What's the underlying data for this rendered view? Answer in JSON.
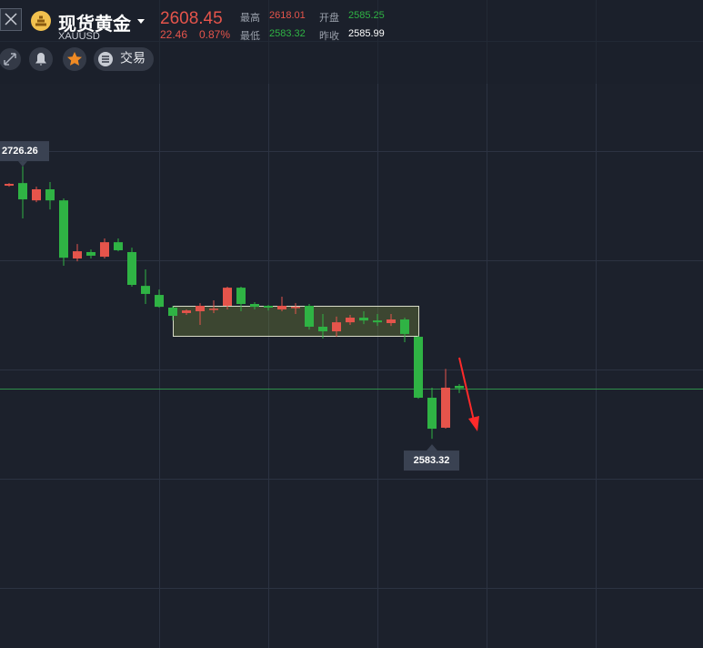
{
  "header": {
    "title": "现货黄金",
    "symbol": "XAUUSD",
    "price": "2608.45",
    "change": "22.46",
    "change_pct": "0.87%",
    "stats": [
      {
        "label": "最高",
        "value": "2618.01"
      },
      {
        "label": "开盘",
        "value": "2585.25"
      },
      {
        "label": "最低",
        "value": "2583.32"
      },
      {
        "label": "昨收",
        "value": "2585.99"
      }
    ]
  },
  "toolbar": {
    "trade": "交易"
  },
  "chart_data": {
    "type": "candlestick",
    "up_color": "#e5544b",
    "down_color": "#2fb344",
    "ylim": [
      2479.3,
      2801.4
    ],
    "ohlc": [
      [
        2709.1,
        2710.4,
        2708.6,
        2710.0
      ],
      [
        2710.4,
        2726.26,
        2692.8,
        2702.3
      ],
      [
        2701.8,
        2708.6,
        2700.9,
        2707.3
      ],
      [
        2707.3,
        2710.9,
        2697.3,
        2701.8
      ],
      [
        2701.8,
        2702.8,
        2669.3,
        2673.3
      ],
      [
        2672.9,
        2680.1,
        2671.5,
        2676.5
      ],
      [
        2676.1,
        2677.4,
        2672.9,
        2674.3
      ],
      [
        2673.8,
        2682.9,
        2672.9,
        2681.0
      ],
      [
        2681.0,
        2682.9,
        2676.5,
        2677.0
      ],
      [
        2676.1,
        2678.3,
        2658.9,
        2659.8
      ],
      [
        2659.3,
        2667.5,
        2650.3,
        2655.3
      ],
      [
        2654.8,
        2657.5,
        2648.5,
        2648.9
      ],
      [
        2648.5,
        2649.4,
        2642.1,
        2644.4
      ],
      [
        2645.8,
        2647.6,
        2644.9,
        2647.1
      ],
      [
        2646.7,
        2650.7,
        2639.9,
        2649.4
      ],
      [
        2647.6,
        2652.1,
        2645.8,
        2648.0
      ],
      [
        2649.4,
        2658.9,
        2647.6,
        2658.4
      ],
      [
        2658.4,
        2658.9,
        2646.7,
        2650.3
      ],
      [
        2650.3,
        2651.2,
        2647.6,
        2648.9
      ],
      [
        2649.4,
        2649.8,
        2647.1,
        2648.5
      ],
      [
        2647.6,
        2653.9,
        2646.7,
        2649.4
      ],
      [
        2648.5,
        2650.7,
        2645.3,
        2648.9
      ],
      [
        2649.4,
        2650.3,
        2637.6,
        2639.0
      ],
      [
        2639.0,
        2645.3,
        2633.1,
        2636.7
      ],
      [
        2636.7,
        2644.0,
        2634.0,
        2641.2
      ],
      [
        2641.2,
        2644.9,
        2639.9,
        2643.5
      ],
      [
        2643.5,
        2646.7,
        2640.3,
        2642.1
      ],
      [
        2642.1,
        2645.3,
        2639.4,
        2641.2
      ],
      [
        2640.8,
        2645.3,
        2639.4,
        2642.6
      ],
      [
        2642.6,
        2643.5,
        2631.3,
        2635.4
      ],
      [
        2634.0,
        2634.5,
        2603.2,
        2603.7
      ],
      [
        2603.7,
        2608.7,
        2583.32,
        2588.3
      ],
      [
        2588.8,
        2618.01,
        2588.3,
        2608.7
      ],
      [
        2609.6,
        2610.5,
        2606.0,
        2608.45
      ]
    ],
    "high_marker": 2726.26,
    "low_marker": 2583.32
  }
}
